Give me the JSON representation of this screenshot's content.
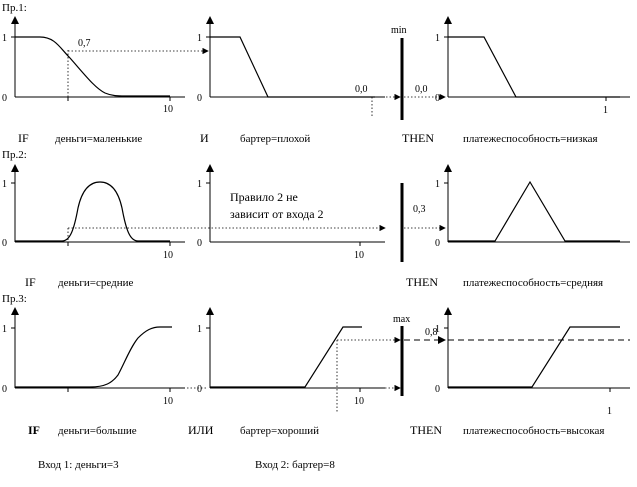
{
  "rule1": {
    "label": "Пр.1:",
    "p1": {
      "y1": "1",
      "y0": "0",
      "value_label": "0,7",
      "x_end": "10"
    },
    "p2": {
      "y1": "1",
      "y0": "0",
      "value_label": "0,0"
    },
    "operator_label": "min",
    "p3": {
      "y1": "1",
      "y0": "0",
      "value_label": "0,0",
      "x_end": "1"
    },
    "if_word": "IF",
    "cond1": "деньги=маленькие",
    "and_word": "И",
    "cond2": "бартер=плохой",
    "then_word": "THEN",
    "result": "платежеспособность=низкая"
  },
  "rule2": {
    "label": "Пр.2:",
    "p1": {
      "y1": "1",
      "y0": "0",
      "x_end": "10"
    },
    "p2": {
      "y1": "1",
      "y0": "0",
      "x_end": "10",
      "note_line1": "Правило 2 не",
      "note_line2": "зависит от входа 2"
    },
    "p3": {
      "y1": "1",
      "y0": "0",
      "value_label": "0,3"
    },
    "if_word": "IF",
    "cond1": "деньги=средние",
    "then_word": "THEN",
    "result": "платежеспособность=средняя"
  },
  "rule3": {
    "label": "Пр.3:",
    "p1": {
      "y1": "1",
      "y0": "0",
      "x_end": "10"
    },
    "p2": {
      "y1": "1",
      "y0": "0",
      "x_end": "10"
    },
    "operator_label": "max",
    "p3": {
      "y1": "1",
      "y0": "0",
      "value_label": "0,8",
      "x_end": "1"
    },
    "if_word": "IF",
    "cond1": "деньги=большие",
    "or_word": "ИЛИ",
    "cond2": "бартер=хороший",
    "then_word": "THEN",
    "result": "платежеспособность=высокая"
  },
  "inputs": {
    "input1": "Вход 1: деньги=3",
    "input2": "Вход 2: бартер=8"
  },
  "icons": {
    "arrowhead": "arrowhead-icon"
  }
}
